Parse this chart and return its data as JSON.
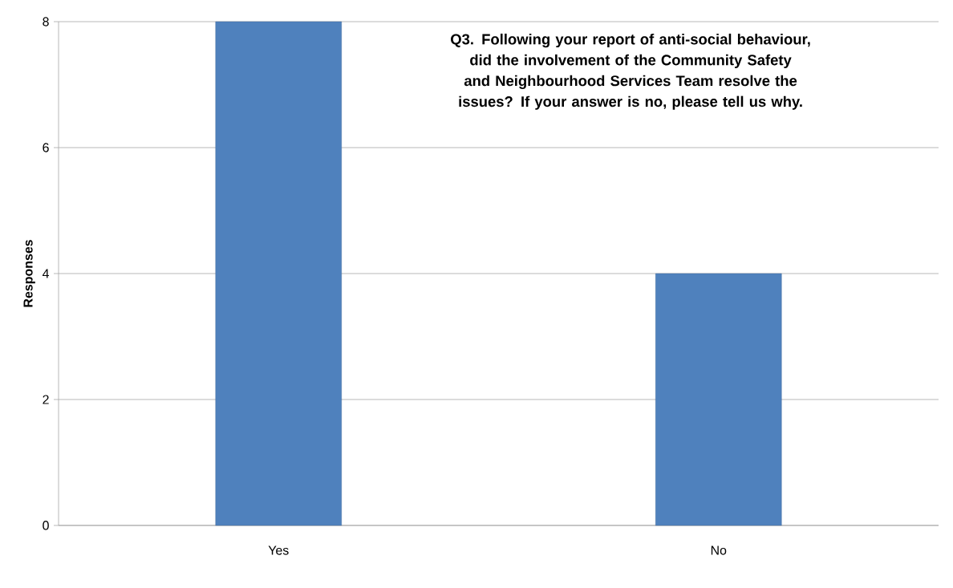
{
  "chart_data": {
    "type": "bar",
    "title": "Q3. Following your report of anti-social behaviour, did the involvement of the Community Safety and Neighbourhood Services Team resolve the issues? If your answer is no, please tell us why.",
    "ylabel": "Responses",
    "categories": [
      "Yes",
      "No"
    ],
    "values": [
      8,
      4
    ],
    "color": "#4f81bd",
    "ylim": [
      0,
      8
    ],
    "yticks": [
      0,
      2,
      4,
      6,
      8
    ],
    "grid": "y"
  }
}
